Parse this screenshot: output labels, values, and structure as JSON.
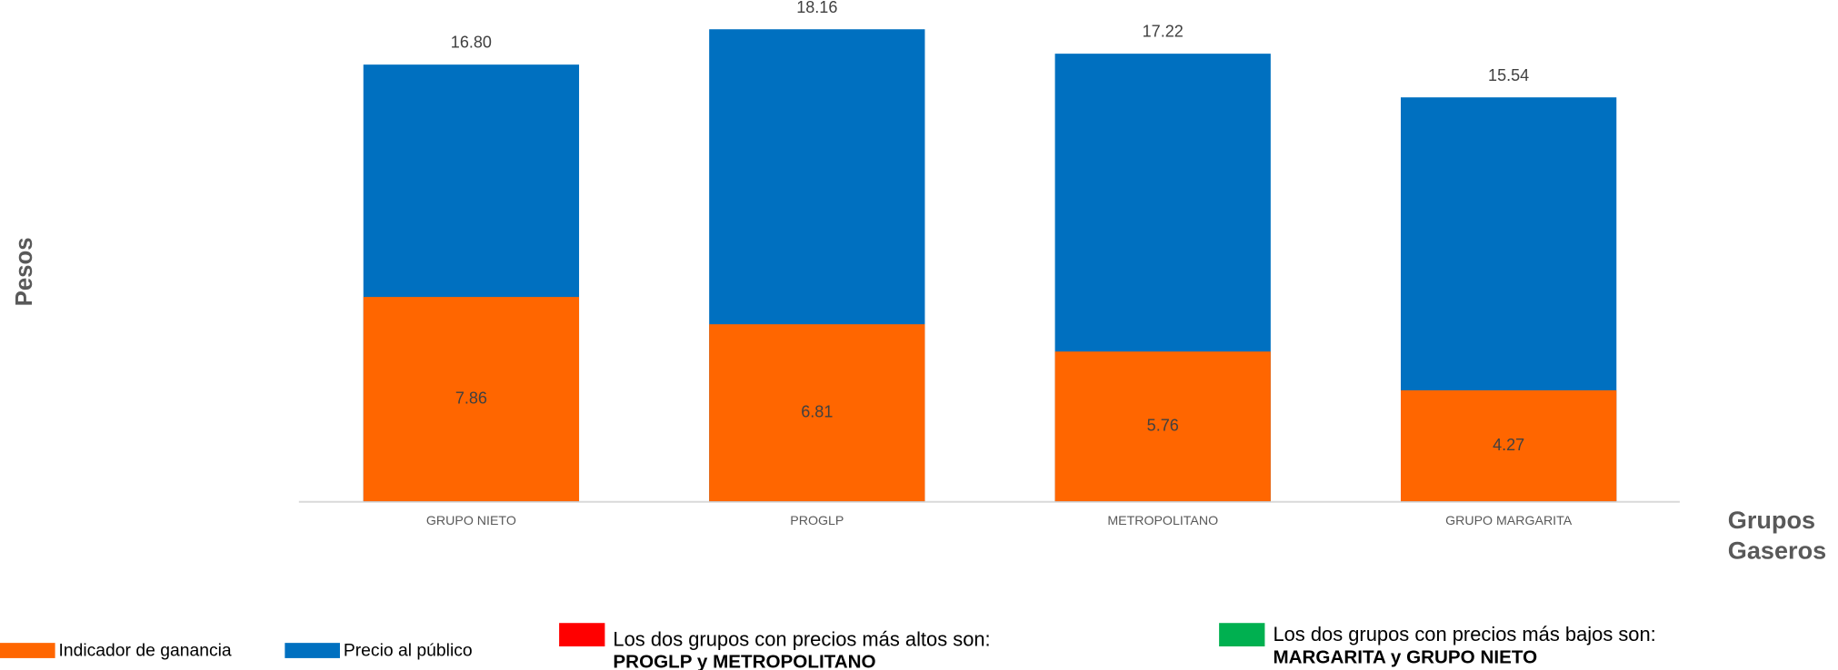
{
  "chart_data": {
    "type": "bar",
    "overlap": true,
    "y_label": "Pesos",
    "x_label": "Grupos Gaseros",
    "categories": [
      "GRUPO NIETO",
      "PROGLP",
      "METROPOLITANO",
      "GRUPO MARGARITA"
    ],
    "series": [
      {
        "name": "Precio al público",
        "color": "#0070c0",
        "values": [
          16.8,
          18.16,
          17.22,
          15.54
        ],
        "value_labels": [
          "16.80",
          "18.16",
          "17.22",
          "15.54"
        ]
      },
      {
        "name": "Indicador de ganancia",
        "color": "#ff6600",
        "values": [
          7.86,
          6.81,
          5.76,
          4.27
        ],
        "value_labels": [
          "7.86",
          "6.81",
          "5.76",
          "4.27"
        ]
      }
    ],
    "ylim": [
      0,
      19
    ],
    "legend_order": [
      1,
      0
    ],
    "annotations": [
      {
        "text": "Los dos grupos con precios más altos son:",
        "bold": "PROGLP y METROPOLITANO",
        "color": "#ff0000"
      },
      {
        "text": "Los dos grupos con precios más bajos son:",
        "bold": "MARGARITA y GRUPO NIETO",
        "color": "#00b050"
      }
    ]
  }
}
